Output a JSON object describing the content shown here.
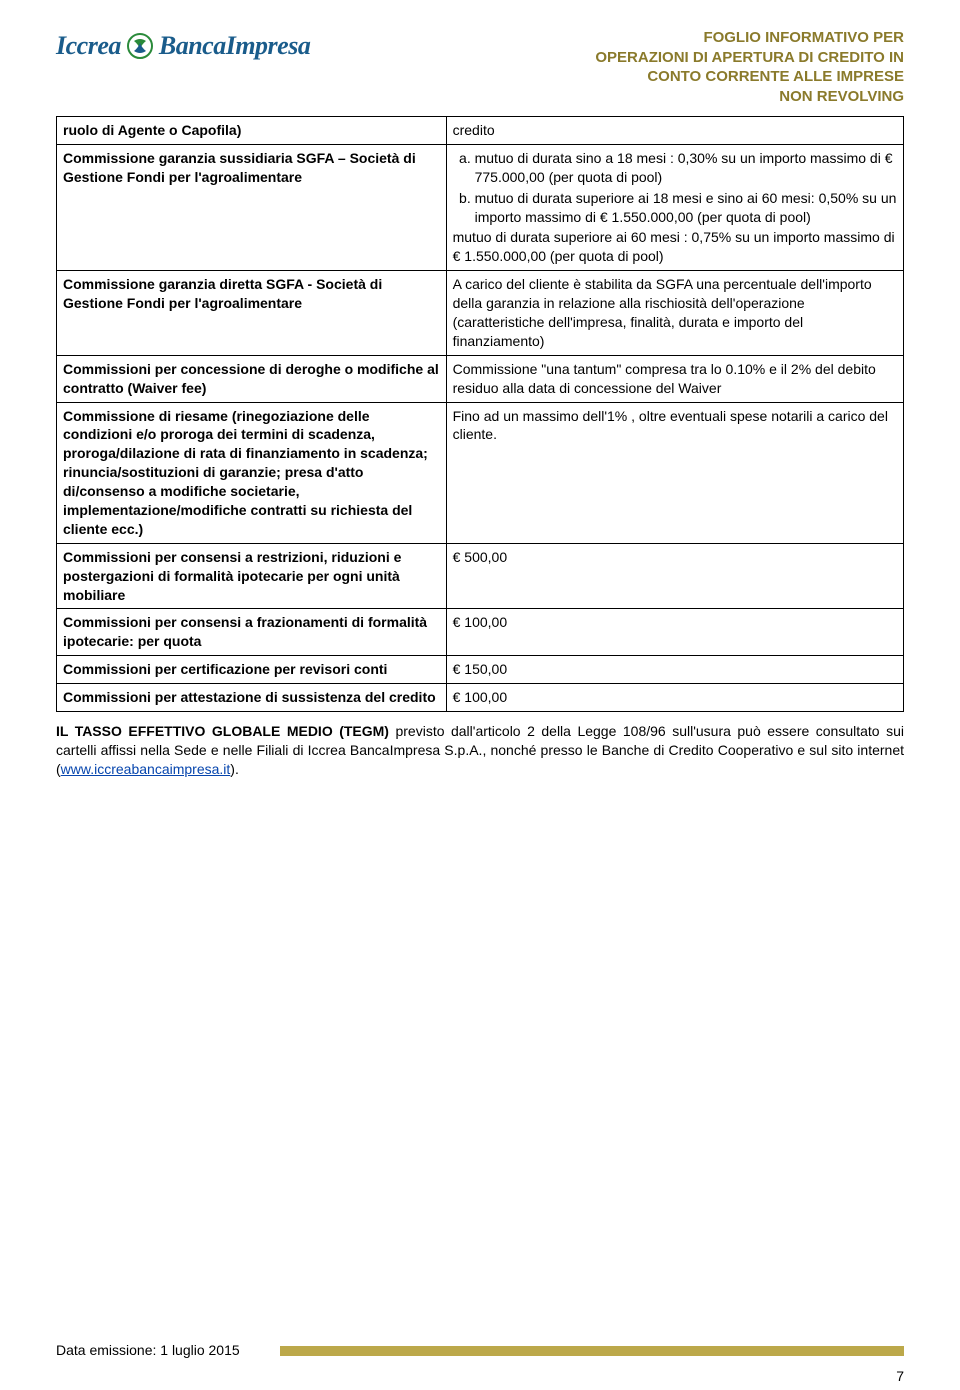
{
  "brand": {
    "iccrea": "Iccrea",
    "banca": "BancaImpresa"
  },
  "doc_title_lines": [
    "FOGLIO INFORMATIVO PER",
    "OPERAZIONI DI APERTURA DI CREDITO IN",
    "CONTO CORRENTE ALLE IMPRESE",
    "NON REVOLVING"
  ],
  "rows": [
    {
      "left": "ruolo di Agente o Capofila)",
      "right_plain": "credito"
    },
    {
      "left": "Commissione garanzia sussidiaria SGFA – Società di Gestione Fondi per l'agroalimentare",
      "right_list": {
        "items": [
          "mutuo di durata sino a 18 mesi : 0,30% su un importo massimo di € 775.000,00 (per quota di pool)",
          "mutuo di durata superiore ai 18 mesi e sino ai 60 mesi: 0,50% su un importo massimo di € 1.550.000,00 (per quota di pool)"
        ],
        "tail": "mutuo di durata superiore ai 60 mesi : 0,75% su un importo massimo di € 1.550.000,00 (per quota di pool)"
      }
    },
    {
      "left": "Commissione garanzia diretta SGFA - Società di Gestione Fondi per l'agroalimentare",
      "right_plain": "A carico del cliente è stabilita da SGFA una percentuale dell'importo della garanzia in relazione alla rischiosità dell'operazione (caratteristiche dell'impresa, finalità, durata e importo del finanziamento)"
    },
    {
      "left": "Commissioni per concessione di deroghe o modifiche al contratto (Waiver fee)",
      "right_plain": "Commissione \"una tantum\" compresa tra lo 0.10% e il 2% del debito residuo alla data di concessione del Waiver"
    },
    {
      "left": "Commissione di riesame (rinegoziazione delle condizioni e/o proroga dei termini di scadenza, proroga/dilazione di rata di finanziamento in scadenza; rinuncia/sostituzioni di garanzie; presa d'atto di/consenso a modifiche societarie, implementazione/modifiche contratti su richiesta del cliente ecc.)",
      "right_plain": "Fino ad un massimo dell'1% , oltre eventuali spese notarili a carico del cliente."
    },
    {
      "left": "Commissioni per consensi a restrizioni, riduzioni e postergazioni di formalità ipotecarie per ogni unità mobiliare",
      "right_plain": "€ 500,00"
    },
    {
      "left": "Commissioni per consensi a frazionamenti di formalità ipotecarie: per quota",
      "right_plain": "€ 100,00"
    },
    {
      "left": "Commissioni per certificazione per revisori conti",
      "right_plain": "€ 150,00",
      "right_bottom": true
    },
    {
      "left": "Commissioni per attestazione di sussistenza del credito",
      "right_plain": "€ 100,00",
      "right_bottom": true,
      "left_justify": true
    }
  ],
  "footnote": {
    "bold": "IL TASSO EFFETTIVO GLOBALE MEDIO (TEGM)",
    "rest": " previsto dall'articolo 2 della Legge 108/96 sull'usura può essere consultato sui cartelli affissi nella Sede e nelle Filiali di Iccrea BancaImpresa S.p.A., nonché presso le Banche di Credito Cooperativo e sul sito internet (",
    "link_text": "www.iccreabancaimpresa.it",
    "tail": ")."
  },
  "footer": {
    "date": "Data emissione: 1 luglio 2015"
  },
  "page_number": "7",
  "colors": {
    "brand_blue": "#1a5c8b",
    "title_olive": "#8a7a2b",
    "bar_gold": "#bca84a",
    "logo_green": "#2a8a3a",
    "logo_blue": "#1a5c8b"
  }
}
